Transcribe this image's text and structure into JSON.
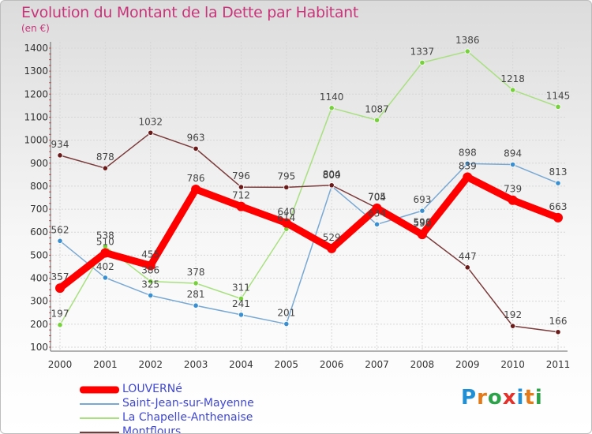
{
  "header": {
    "title": "Evolution du Montant de la Dette par Habitant",
    "subtitle": "(en €)"
  },
  "logo": {
    "text": "Proxiti",
    "letter_colors": [
      "#1f8fd6",
      "#e37b1b",
      "#2ea24a",
      "#e2322b",
      "#1f8fd6",
      "#e37b1b",
      "#2ea24a"
    ]
  },
  "chart_data": {
    "type": "line",
    "title": "Evolution du Montant de la Dette par Habitant",
    "subtitle": "(en €)",
    "xlabel": "",
    "ylabel": "",
    "x": [
      "2000",
      "2001",
      "2002",
      "2003",
      "2004",
      "2005",
      "2006",
      "2007",
      "2008",
      "2009",
      "2010",
      "2011"
    ],
    "ylim": [
      100,
      1400
    ],
    "yticks": [
      100,
      200,
      300,
      400,
      500,
      600,
      700,
      800,
      900,
      1000,
      1100,
      1200,
      1300,
      1400
    ],
    "grid": true,
    "legend_position": "bottom-left",
    "series": [
      {
        "name": "LOUVERNé",
        "values": [
          357,
          510,
          455,
          786,
          712,
          640,
          529,
          704,
          590,
          839,
          739,
          663
        ],
        "labels": [
          "357",
          "510",
          "455",
          "786",
          "712",
          "640",
          "529",
          "704",
          "590",
          "839",
          "739",
          "663"
        ],
        "color": "#ff0000",
        "marker_color": "#ff0000",
        "emphasis": true
      },
      {
        "name": "Saint-Jean-sur-Mayenne",
        "values": [
          562,
          402,
          325,
          281,
          241,
          201,
          800,
          634,
          693,
          898,
          894,
          813
        ],
        "labels": [
          "562",
          "402",
          "325",
          "281",
          "241",
          "201",
          "800",
          "634",
          "693",
          "898",
          "894",
          "813"
        ],
        "color": "#78a9d4",
        "marker_color": "#3a8fd0",
        "emphasis": false
      },
      {
        "name": "La Chapelle-Anthenaise",
        "values": [
          197,
          538,
          386,
          378,
          311,
          614,
          1140,
          1087,
          1337,
          1386,
          1218,
          1145
        ],
        "labels": [
          "197",
          "538",
          "386",
          "378",
          "311",
          "614",
          "1140",
          "1087",
          "1337",
          "1386",
          "1218",
          "1145"
        ],
        "color": "#a8e07f",
        "marker_color": "#77d13c",
        "emphasis": false
      },
      {
        "name": "Montflours",
        "values": [
          934,
          878,
          1032,
          963,
          796,
          795,
          804,
          705,
          596,
          447,
          192,
          166
        ],
        "labels": [
          "934",
          "878",
          "1032",
          "963",
          "796",
          "795",
          "804",
          "705",
          "596",
          "447",
          "192",
          "166"
        ],
        "color": "#7b3a3a",
        "marker_color": "#6b1a1a",
        "emphasis": false
      }
    ]
  }
}
